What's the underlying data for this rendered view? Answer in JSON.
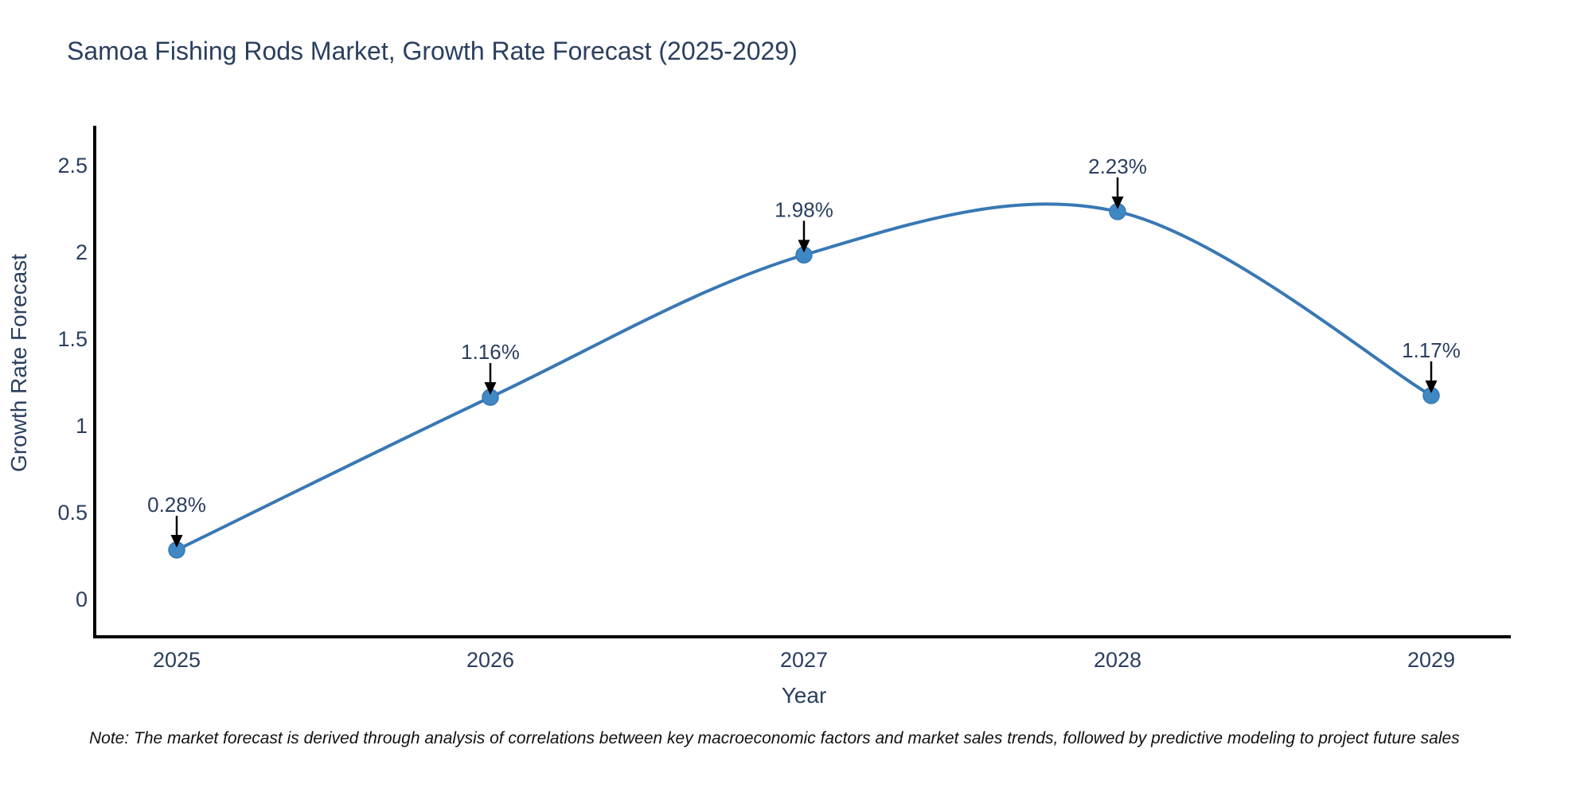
{
  "page": {
    "background": "#ffffff"
  },
  "chart_data": {
    "type": "line",
    "line_shape": "spline",
    "title": "Samoa Fishing Rods Market, Growth Rate Forecast (2025-2029)",
    "xlabel": "Year",
    "ylabel": "Growth Rate Forecast",
    "x": [
      2025,
      2026,
      2027,
      2028,
      2029
    ],
    "xticklabels": [
      "2025",
      "2026",
      "2027",
      "2028",
      "2029"
    ],
    "series": [
      {
        "name": "Growth Rate Forecast",
        "values": [
          0.28,
          1.16,
          1.98,
          2.23,
          1.17
        ],
        "point_labels": [
          "0.28%",
          "1.16%",
          "1.98%",
          "2.23%",
          "1.17%"
        ]
      }
    ],
    "yticks": [
      0,
      0.5,
      1,
      1.5,
      2,
      2.5
    ],
    "ylim": [
      -0.24,
      2.72
    ],
    "grid": false,
    "legend": false,
    "annotation_style": "black-down-arrows",
    "colors": {
      "line": "#3878b4",
      "marker": "#4088c4",
      "axis": "#000000",
      "tick_text": "#2a3f5f",
      "annotation_text": "#2a3f5f",
      "arrow": "#000000",
      "title_text": "#2a3f5f",
      "note_text": "#111111"
    },
    "note": "Note: The market forecast is derived through analysis of correlations between key macroeconomic factors and market sales trends, followed by predictive modeling to project future sales"
  }
}
